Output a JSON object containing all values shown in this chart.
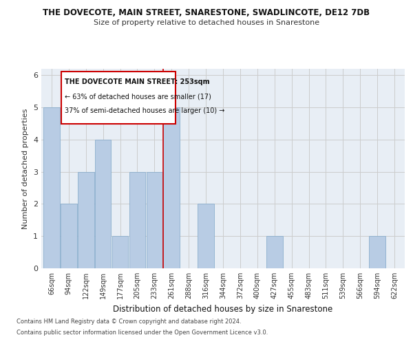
{
  "title": "THE DOVECOTE, MAIN STREET, SNARESTONE, SWADLINCOTE, DE12 7DB",
  "subtitle": "Size of property relative to detached houses in Snarestone",
  "xlabel": "Distribution of detached houses by size in Snarestone",
  "ylabel": "Number of detached properties",
  "categories": [
    "66sqm",
    "94sqm",
    "122sqm",
    "149sqm",
    "177sqm",
    "205sqm",
    "233sqm",
    "261sqm",
    "288sqm",
    "316sqm",
    "344sqm",
    "372sqm",
    "400sqm",
    "427sqm",
    "455sqm",
    "483sqm",
    "511sqm",
    "539sqm",
    "566sqm",
    "594sqm",
    "622sqm"
  ],
  "values": [
    5,
    2,
    3,
    4,
    1,
    3,
    3,
    5,
    0,
    2,
    0,
    0,
    0,
    1,
    0,
    0,
    0,
    0,
    0,
    1,
    0
  ],
  "bar_color": "#b8cce4",
  "bar_edgecolor": "#7ea6c8",
  "highlight_line_color": "#cc0000",
  "annotation_title": "THE DOVECOTE MAIN STREET: 253sqm",
  "annotation_line1": "← 63% of detached houses are smaller (17)",
  "annotation_line2": "37% of semi-detached houses are larger (10) →",
  "annotation_box_color": "#cc0000",
  "ylim": [
    0,
    6.2
  ],
  "yticks": [
    0,
    1,
    2,
    3,
    4,
    5,
    6
  ],
  "grid_color": "#cccccc",
  "bg_color": "#e8eef5",
  "footer1": "Contains HM Land Registry data © Crown copyright and database right 2024.",
  "footer2": "Contains public sector information licensed under the Open Government Licence v3.0."
}
